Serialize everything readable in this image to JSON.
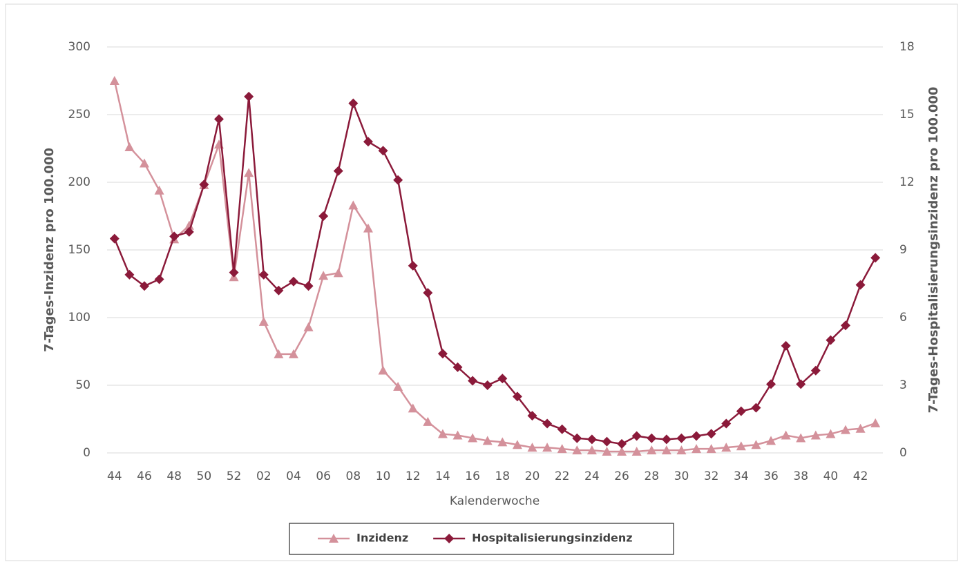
{
  "chart_data": {
    "type": "line",
    "x_label": "Kalenderwoche",
    "y_label": "7-Tages-Inzidenz pro 100.000",
    "y2_label": "7-Tages-Hospitalisierungsinzidenz pro 100.000",
    "categories": [
      "44",
      null,
      "46",
      null,
      "48",
      null,
      "50",
      null,
      "52",
      null,
      "02",
      null,
      "04",
      null,
      "06",
      null,
      "08",
      null,
      "10",
      null,
      "12",
      null,
      "14",
      null,
      "16",
      null,
      "18",
      null,
      "20",
      null,
      "22",
      null,
      "24",
      null,
      "26",
      null,
      "28",
      null,
      "30",
      null,
      "32",
      null,
      "34",
      null,
      "36",
      null,
      "38",
      null,
      "40",
      null,
      "42",
      null
    ],
    "series": [
      {
        "name": "Inzidenz",
        "color": "#d4919b",
        "marker": "triangle",
        "values": [
          275,
          226,
          214,
          194,
          158,
          168,
          198,
          228,
          130,
          207,
          97,
          73,
          73,
          93,
          131,
          133,
          183,
          166,
          61,
          49,
          33,
          23,
          14,
          13,
          11,
          9,
          8,
          6,
          4,
          4,
          3,
          2,
          2,
          1,
          1,
          1,
          2,
          2,
          2,
          3,
          3,
          4,
          5,
          6,
          9,
          13,
          11,
          13,
          14,
          17,
          18,
          22
        ]
      },
      {
        "name": "Hospitalisierungsinzidenz",
        "color": "#8b1a3a",
        "marker": "diamond",
        "axis": "y2",
        "values": [
          9.5,
          7.9,
          7.4,
          7.7,
          9.6,
          9.8,
          11.9,
          14.8,
          8.0,
          15.8,
          7.9,
          7.2,
          7.6,
          7.4,
          10.5,
          12.5,
          15.5,
          13.8,
          13.4,
          12.1,
          8.3,
          7.1,
          4.4,
          3.8,
          3.2,
          3.0,
          3.3,
          2.5,
          1.65,
          1.3,
          1.05,
          0.65,
          0.6,
          0.5,
          0.4,
          0.75,
          0.65,
          0.6,
          0.65,
          0.75,
          0.85,
          1.3,
          1.85,
          2.0,
          3.05,
          4.75,
          3.05,
          3.65,
          5.0,
          5.65,
          7.45,
          8.65
        ]
      }
    ],
    "ylim": [
      0,
      300
    ],
    "yticks": [
      0,
      50,
      100,
      150,
      200,
      250,
      300
    ],
    "y2lim": [
      0,
      18
    ],
    "y2ticks": [
      0,
      3,
      6,
      9,
      12,
      15,
      18
    ],
    "grid": true,
    "legend": "bottom"
  }
}
